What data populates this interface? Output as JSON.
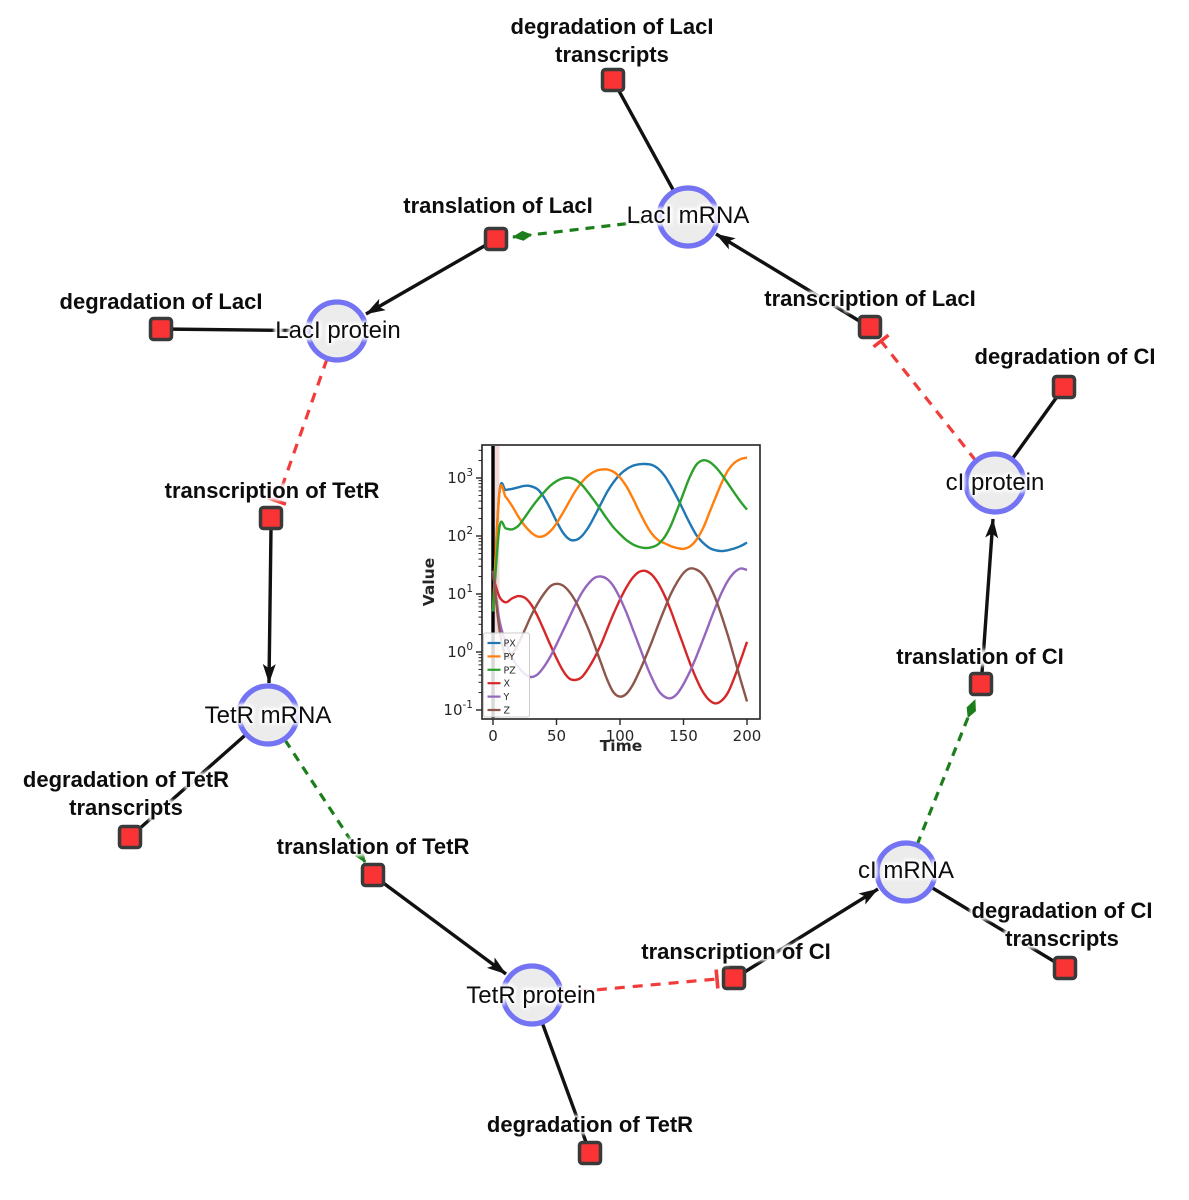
{
  "diagram": {
    "species": {
      "laci_mrna": {
        "label": "LacI mRNA"
      },
      "laci_protein": {
        "label": "LacI protein"
      },
      "tetr_mrna": {
        "label": "TetR mRNA"
      },
      "tetr_protein": {
        "label": "TetR protein"
      },
      "ci_mrna": {
        "label": "cI mRNA"
      },
      "ci_protein": {
        "label": "cI protein"
      }
    },
    "reactions": {
      "deg_laci_tx": {
        "line1": "degradation of LacI",
        "line2": "transcripts"
      },
      "transl_laci": {
        "line1": "translation of LacI"
      },
      "deg_laci": {
        "line1": "degradation of LacI"
      },
      "transcr_laci": {
        "line1": "transcription of LacI"
      },
      "deg_ci": {
        "line1": "degradation of CI"
      },
      "transcr_tetr": {
        "line1": "transcription of TetR"
      },
      "deg_tetr_tx": {
        "line1": "degradation of TetR",
        "line2": "transcripts"
      },
      "transl_tetr": {
        "line1": "translation of TetR"
      },
      "deg_tetr": {
        "line1": "degradation of TetR"
      },
      "transcr_ci": {
        "line1": "transcription of CI"
      },
      "deg_ci_tx": {
        "line1": "degradation of CI",
        "line2": "transcripts"
      },
      "transl_ci": {
        "line1": "translation of CI"
      }
    },
    "colors": {
      "species_fill": "#ececec",
      "species_border": "#7373f3",
      "reaction_fill": "#fa3434",
      "reaction_border": "#3a3a3a",
      "edge_black": "#111111",
      "edge_activation_green": "#1b7e1b",
      "edge_inhibition_red": "#f23b3b"
    }
  },
  "chart_data": {
    "type": "line",
    "xlabel": "Time",
    "ylabel": "Value",
    "yscale": "log",
    "xlim": [
      -9,
      210
    ],
    "ylim_exponents": [
      -1.15,
      3.55
    ],
    "x_ticks": [
      0,
      50,
      100,
      150,
      200
    ],
    "y_tick_exponents": [
      -1,
      0,
      1,
      2,
      3
    ],
    "legend_position": "lower left",
    "initial_vline_x": 0,
    "x": [
      0,
      5,
      10,
      15,
      20,
      25,
      30,
      35,
      40,
      45,
      50,
      55,
      60,
      65,
      70,
      75,
      80,
      85,
      90,
      95,
      100,
      105,
      110,
      115,
      120,
      125,
      130,
      135,
      140,
      145,
      150,
      155,
      160,
      165,
      170,
      175,
      180,
      185,
      190,
      195,
      200
    ],
    "series": [
      {
        "name": "PX",
        "color": "#1f77b4",
        "values": [
          5,
          560,
          620,
          650,
          690,
          735,
          720,
          640,
          470,
          300,
          180,
          115,
          88,
          85,
          100,
          140,
          220,
          360,
          580,
          850,
          1150,
          1420,
          1620,
          1720,
          1740,
          1680,
          1450,
          1100,
          730,
          460,
          275,
          165,
          105,
          78,
          63,
          57,
          55,
          57,
          61,
          67,
          77
        ]
      },
      {
        "name": "PY",
        "color": "#ff7f0e",
        "values": [
          5,
          545,
          470,
          330,
          215,
          150,
          115,
          98,
          100,
          120,
          165,
          250,
          390,
          600,
          850,
          1100,
          1300,
          1395,
          1400,
          1280,
          1020,
          720,
          450,
          270,
          165,
          110,
          85,
          75,
          67,
          62,
          60,
          66,
          85,
          130,
          240,
          450,
          820,
          1350,
          1820,
          2120,
          2240
        ]
      },
      {
        "name": "PZ",
        "color": "#2ca02c",
        "values": [
          5,
          140,
          135,
          130,
          150,
          210,
          300,
          420,
          560,
          730,
          880,
          990,
          1010,
          930,
          760,
          560,
          400,
          280,
          195,
          140,
          108,
          85,
          72,
          65,
          62,
          64,
          72,
          95,
          150,
          280,
          550,
          1050,
          1680,
          2010,
          1920,
          1560,
          1160,
          800,
          555,
          390,
          285
        ]
      },
      {
        "name": "X",
        "color": "#d62728",
        "values": [
          20,
          9,
          7.2,
          8.4,
          9.2,
          8.6,
          6.6,
          4.2,
          2.4,
          1.35,
          0.78,
          0.48,
          0.35,
          0.33,
          0.37,
          0.52,
          0.8,
          1.35,
          2.5,
          4.6,
          8,
          13,
          19,
          24,
          25,
          21.5,
          15.5,
          9.5,
          5.2,
          2.6,
          1.3,
          0.65,
          0.35,
          0.21,
          0.15,
          0.13,
          0.145,
          0.2,
          0.36,
          0.72,
          1.5
        ]
      },
      {
        "name": "Y",
        "color": "#9467bd",
        "values": [
          25,
          3.5,
          1.5,
          0.8,
          0.55,
          0.42,
          0.37,
          0.41,
          0.55,
          0.82,
          1.35,
          2.3,
          3.9,
          6.6,
          10.5,
          15,
          19,
          20,
          18,
          13.5,
          8.5,
          4.8,
          2.5,
          1.3,
          0.66,
          0.36,
          0.22,
          0.17,
          0.16,
          0.19,
          0.28,
          0.46,
          0.82,
          1.55,
          3,
          5.8,
          10.5,
          17,
          23.5,
          27.5,
          26
        ]
      },
      {
        "name": "Z",
        "color": "#8c564b",
        "values": [
          25,
          2.5,
          0.85,
          0.92,
          1.4,
          2.4,
          4.2,
          6.8,
          10,
          13.5,
          15,
          14,
          11,
          7.5,
          4.5,
          2.5,
          1.3,
          0.65,
          0.33,
          0.2,
          0.17,
          0.19,
          0.27,
          0.45,
          0.8,
          1.5,
          2.9,
          5.5,
          10,
          16,
          23,
          27.5,
          26.5,
          22,
          15,
          8.5,
          4.2,
          1.9,
          0.8,
          0.33,
          0.14
        ]
      }
    ]
  }
}
